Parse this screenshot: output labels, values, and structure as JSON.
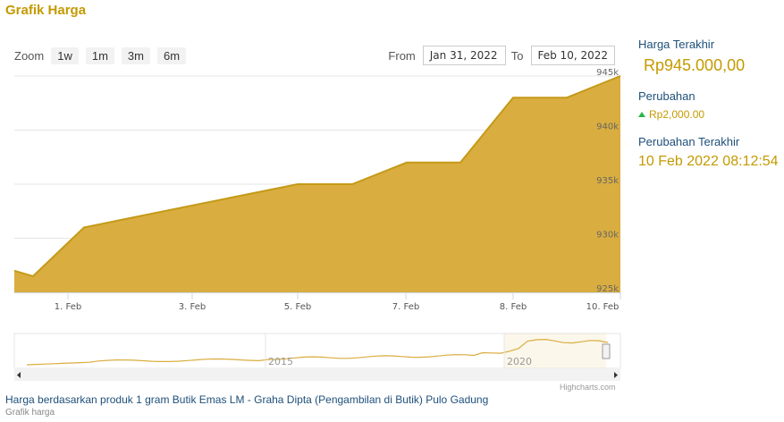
{
  "header": {
    "title": "Grafik Harga"
  },
  "range_selector": {
    "zoom_label": "Zoom",
    "buttons": [
      "1w",
      "1m",
      "3m",
      "6m"
    ],
    "from_label": "From",
    "from_value": "Jan 31, 2022",
    "to_label": "To",
    "to_value": "Feb 10, 2022"
  },
  "side_panel": {
    "last_price_label": "Harga Terakhir",
    "last_price": "Rp945.000,00",
    "change_label": "Perubahan",
    "change_value": "Rp2,000.00",
    "last_change_label": "Perubahan Terakhir",
    "last_change_time": "10 Feb 2022 08:12:54"
  },
  "footer": {
    "title": "Harga berdasarkan produk 1 gram Butik Emas LM - Graha Dipta (Pengambilan di Butik) Pulo Gadung",
    "subtitle": "Grafik harga",
    "credits": "Highcharts.com"
  },
  "colors": {
    "fill": "#d9ad3f",
    "line": "#c49a18",
    "accent": "#c49a00",
    "up": "#2bb44a"
  },
  "chart_data": {
    "type": "area",
    "x": [
      "Jan 31",
      "Jan 31",
      "Feb 1",
      "Feb 3",
      "Feb 5",
      "Feb 6",
      "Feb 7",
      "Feb 7",
      "Feb 8",
      "Feb 9",
      "Feb 10"
    ],
    "values": [
      927000,
      926500,
      931000,
      933000,
      935000,
      935000,
      937000,
      937000,
      943000,
      943000,
      945000
    ],
    "x_tick_labels": [
      "1. Feb",
      "3. Feb",
      "5. Feb",
      "7. Feb",
      "8. Feb",
      "10. Feb"
    ],
    "y_tick_labels": [
      "945k",
      "940k",
      "935k",
      "930k",
      "925k"
    ],
    "ylim": [
      925000,
      945000
    ],
    "grid": true,
    "navigator": {
      "labels": [
        "2015",
        "2020"
      ]
    }
  }
}
